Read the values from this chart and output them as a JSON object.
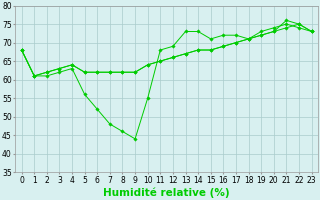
{
  "xlabel": "Humidité relative (%)",
  "ylabel": "",
  "background_color": "#d8f0f0",
  "grid_color": "#aacccc",
  "line_color": "#00cc00",
  "xlim": [
    -0.5,
    23.5
  ],
  "ylim": [
    35,
    80
  ],
  "xticks": [
    0,
    1,
    2,
    3,
    4,
    5,
    6,
    7,
    8,
    9,
    10,
    11,
    12,
    13,
    14,
    15,
    16,
    17,
    18,
    19,
    20,
    21,
    22,
    23
  ],
  "yticks": [
    35,
    40,
    45,
    50,
    55,
    60,
    65,
    70,
    75,
    80
  ],
  "series": [
    [
      68,
      61,
      61,
      62,
      63,
      56,
      52,
      48,
      46,
      44,
      55,
      68,
      69,
      73,
      73,
      71,
      72,
      72,
      71,
      73,
      74,
      75,
      74,
      73
    ],
    [
      68,
      61,
      62,
      63,
      64,
      62,
      62,
      62,
      62,
      62,
      64,
      65,
      66,
      67,
      68,
      68,
      69,
      70,
      71,
      72,
      73,
      74,
      75,
      73
    ],
    [
      68,
      61,
      62,
      63,
      64,
      62,
      62,
      62,
      62,
      62,
      64,
      65,
      66,
      67,
      68,
      68,
      69,
      70,
      71,
      72,
      73,
      76,
      75,
      73
    ]
  ],
  "xlabel_fontsize": 7.5,
  "tick_fontsize": 5.5
}
